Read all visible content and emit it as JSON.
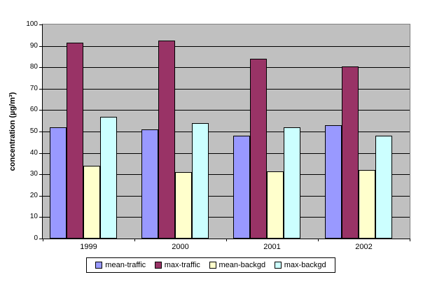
{
  "chart_data": {
    "type": "bar",
    "title": "",
    "categories": [
      "1999",
      "2000",
      "2001",
      "2002"
    ],
    "series": [
      {
        "name": "mean-traffic",
        "color": "#9999FF",
        "values": [
          52,
          51,
          48,
          53
        ]
      },
      {
        "name": "max-traffic",
        "color": "#993366",
        "values": [
          91.5,
          92.5,
          84,
          80.5
        ]
      },
      {
        "name": "mean-backgd",
        "color": "#FFFFCC",
        "values": [
          34,
          31,
          31.5,
          32
        ]
      },
      {
        "name": "max-backgd",
        "color": "#CCFFFF",
        "values": [
          57,
          54,
          52,
          48
        ]
      }
    ],
    "xlabel": "",
    "ylabel": "concentration (µg/m³)",
    "ylim": [
      0,
      100
    ],
    "ytick_step": 10,
    "grid": true,
    "legend_position": "bottom",
    "plot_bg": "#C0C0C0",
    "gridline_color": "#000000",
    "axis_color": "#000000",
    "plot_border_color": "#808080",
    "bar_border_color": "#000000"
  }
}
